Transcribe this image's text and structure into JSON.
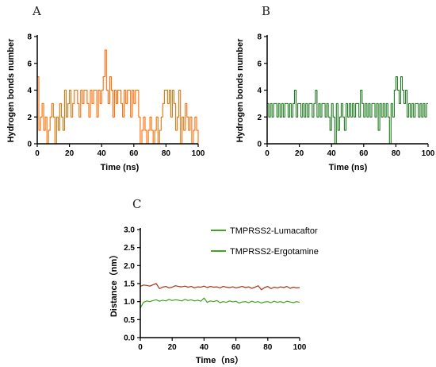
{
  "chart_data": [
    {
      "panel": "A",
      "type": "line",
      "xlabel": "Time (ns)",
      "ylabel": "Hydrogen bonds number",
      "xlim": [
        0,
        100
      ],
      "ylim": [
        0,
        8
      ],
      "xticks": [
        0,
        20,
        40,
        60,
        80,
        100
      ],
      "yticks": [
        0,
        2,
        4,
        6,
        8
      ],
      "grid": false,
      "series": [
        {
          "color": "#ff6a00",
          "x": [
            0,
            1,
            2,
            3,
            4,
            5,
            6,
            7,
            8,
            9,
            10,
            11,
            12,
            13,
            14,
            15,
            16,
            17,
            18,
            19,
            20,
            21,
            22,
            23,
            24,
            25,
            26,
            27,
            28,
            29,
            30,
            31,
            32,
            33,
            34,
            35,
            36,
            37,
            38,
            39,
            40,
            41,
            42,
            43,
            44,
            45,
            46,
            47,
            48,
            49,
            50,
            51,
            52,
            53,
            54,
            55,
            56,
            57,
            58,
            59,
            60,
            61,
            62,
            63,
            64,
            65,
            66,
            67,
            68,
            69,
            70,
            71,
            72,
            73,
            74,
            75,
            76,
            77,
            78,
            79,
            80,
            81,
            82,
            83,
            84,
            85,
            86,
            87,
            88,
            89,
            90,
            91,
            92,
            93,
            94,
            95,
            96,
            97,
            98,
            99,
            100
          ],
          "values": [
            5,
            1,
            2,
            3,
            1,
            2,
            0,
            1,
            2,
            3,
            2,
            0,
            2,
            1,
            3,
            2,
            1,
            4,
            2,
            3,
            4,
            2,
            3,
            4,
            4,
            3,
            2,
            4,
            3,
            4,
            4,
            3,
            2,
            4,
            3,
            4,
            4,
            2,
            4,
            3,
            4,
            5,
            7,
            4,
            3,
            5,
            4,
            2,
            4,
            3,
            4,
            4,
            3,
            2,
            4,
            3,
            4,
            4,
            2,
            4,
            3,
            4,
            4,
            2,
            0,
            1,
            2,
            1,
            0,
            1,
            2,
            1,
            0,
            1,
            2,
            0,
            1,
            2,
            3,
            4,
            4,
            3,
            4,
            2,
            4,
            3,
            1,
            2,
            4,
            0,
            2,
            1,
            3,
            2,
            1,
            2,
            0,
            1,
            2,
            1,
            0
          ]
        }
      ]
    },
    {
      "panel": "B",
      "type": "line",
      "xlabel": "Time (ns)",
      "ylabel": "Hydrogen bonds number",
      "xlim": [
        0,
        100
      ],
      "ylim": [
        0,
        8
      ],
      "xticks": [
        0,
        20,
        40,
        60,
        80,
        100
      ],
      "yticks": [
        0,
        2,
        4,
        6,
        8
      ],
      "grid": false,
      "series": [
        {
          "color": "#1e7a1e",
          "x": [
            0,
            1,
            2,
            3,
            4,
            5,
            6,
            7,
            8,
            9,
            10,
            11,
            12,
            13,
            14,
            15,
            16,
            17,
            18,
            19,
            20,
            21,
            22,
            23,
            24,
            25,
            26,
            27,
            28,
            29,
            30,
            31,
            32,
            33,
            34,
            35,
            36,
            37,
            38,
            39,
            40,
            41,
            42,
            43,
            44,
            45,
            46,
            47,
            48,
            49,
            50,
            51,
            52,
            53,
            54,
            55,
            56,
            57,
            58,
            59,
            60,
            61,
            62,
            63,
            64,
            65,
            66,
            67,
            68,
            69,
            70,
            71,
            72,
            73,
            74,
            75,
            76,
            77,
            78,
            79,
            80,
            81,
            82,
            83,
            84,
            85,
            86,
            87,
            88,
            89,
            90,
            91,
            92,
            93,
            94,
            95,
            96,
            97,
            98,
            99,
            100
          ],
          "values": [
            3,
            2,
            3,
            2,
            3,
            3,
            2,
            3,
            2,
            3,
            2,
            3,
            3,
            2,
            3,
            2,
            3,
            4,
            2,
            3,
            3,
            2,
            3,
            2,
            3,
            2,
            3,
            3,
            2,
            3,
            4,
            2,
            3,
            2,
            3,
            3,
            2,
            3,
            2,
            1,
            3,
            2,
            0,
            3,
            1,
            2,
            3,
            2,
            1,
            3,
            2,
            3,
            2,
            3,
            2,
            3,
            3,
            2,
            4,
            3,
            2,
            3,
            2,
            3,
            2,
            3,
            3,
            2,
            3,
            1,
            3,
            2,
            3,
            2,
            3,
            2,
            0,
            3,
            2,
            4,
            5,
            4,
            3,
            5,
            4,
            3,
            4,
            2,
            3,
            2,
            3,
            2,
            3,
            3,
            2,
            3,
            2,
            3,
            2,
            3,
            3
          ]
        }
      ]
    },
    {
      "panel": "C",
      "type": "line",
      "xlabel": "Time（ns）",
      "ylabel": "Distance（nm）",
      "xlim": [
        0,
        100
      ],
      "ylim": [
        0,
        3.0
      ],
      "xticks": [
        0,
        20,
        40,
        60,
        80,
        100
      ],
      "yticks": [
        0.0,
        0.5,
        1.0,
        1.5,
        2.0,
        2.5,
        3.0
      ],
      "ytick_labels": [
        "0.0",
        "0.5",
        "1.0",
        "1.5",
        "2.0",
        "2.5",
        "3.0"
      ],
      "grid": false,
      "legend_position": "top-right",
      "series": [
        {
          "name": "TMPRSS2-Lumacaftor",
          "color": "#a83418",
          "x": [
            0,
            2,
            4,
            6,
            8,
            10,
            12,
            14,
            16,
            18,
            20,
            22,
            24,
            26,
            28,
            30,
            32,
            34,
            36,
            38,
            40,
            42,
            44,
            46,
            48,
            50,
            52,
            54,
            56,
            58,
            60,
            62,
            64,
            66,
            68,
            70,
            72,
            74,
            76,
            78,
            80,
            82,
            84,
            86,
            88,
            90,
            92,
            94,
            96,
            98,
            100
          ],
          "values": [
            1.42,
            1.46,
            1.45,
            1.43,
            1.47,
            1.5,
            1.36,
            1.4,
            1.42,
            1.38,
            1.4,
            1.44,
            1.42,
            1.41,
            1.43,
            1.4,
            1.42,
            1.38,
            1.41,
            1.4,
            1.43,
            1.39,
            1.42,
            1.4,
            1.41,
            1.38,
            1.42,
            1.4,
            1.39,
            1.41,
            1.38,
            1.4,
            1.42,
            1.39,
            1.41,
            1.37,
            1.4,
            1.44,
            1.33,
            1.39,
            1.42,
            1.36,
            1.4,
            1.38,
            1.41,
            1.39,
            1.42,
            1.37,
            1.4,
            1.38,
            1.39
          ]
        },
        {
          "name": "TMPRSS2-Ergotamine",
          "color": "#3fa61e",
          "x": [
            0,
            2,
            4,
            6,
            8,
            10,
            12,
            14,
            16,
            18,
            20,
            22,
            24,
            26,
            28,
            30,
            32,
            34,
            36,
            38,
            40,
            42,
            44,
            46,
            48,
            50,
            52,
            54,
            56,
            58,
            60,
            62,
            64,
            66,
            68,
            70,
            72,
            74,
            76,
            78,
            80,
            82,
            84,
            86,
            88,
            90,
            92,
            94,
            96,
            98,
            100
          ],
          "values": [
            0.82,
            0.98,
            1.02,
            1.0,
            1.03,
            1.05,
            1.01,
            1.04,
            1.02,
            1.06,
            1.03,
            1.05,
            1.04,
            1.02,
            1.06,
            1.03,
            1.05,
            1.02,
            1.04,
            1.01,
            1.1,
            0.98,
            1.02,
            1.0,
            1.03,
            0.97,
            1.0,
            0.98,
            1.02,
            0.99,
            1.01,
            0.96,
            0.99,
            1.0,
            0.97,
            1.01,
            0.98,
            1.0,
            0.96,
            0.99,
            1.0,
            0.97,
            1.01,
            0.98,
            1.0,
            0.97,
            1.01,
            0.99,
            0.97,
            1.0,
            0.98
          ]
        }
      ]
    }
  ],
  "labels": {
    "panel_a": "A",
    "panel_b": "B",
    "panel_c": "C"
  }
}
